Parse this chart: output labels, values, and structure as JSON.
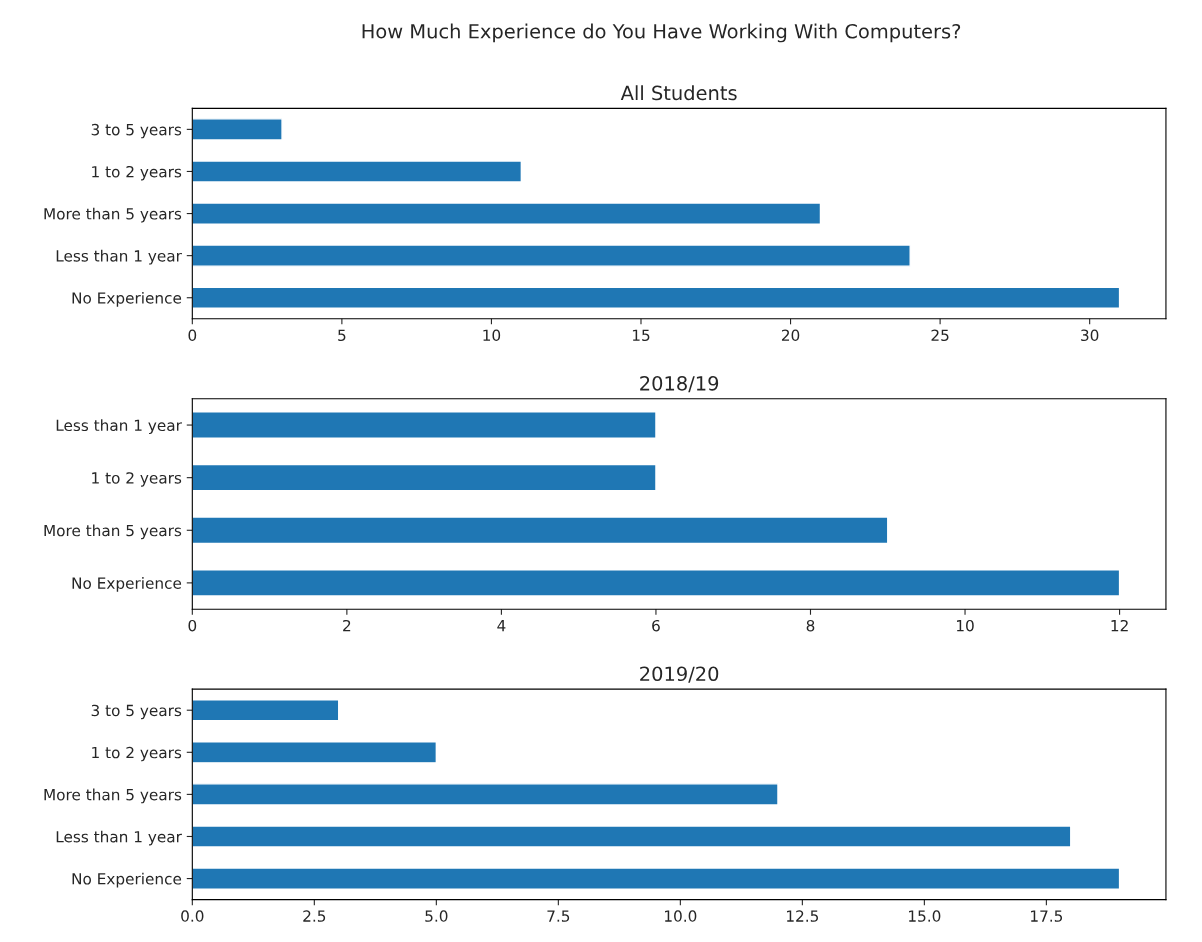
{
  "chart_data": [
    {
      "type": "bar",
      "orientation": "horizontal",
      "title": "All Students",
      "annotations": [
        "How Much Experience do You Have Working With Computers?"
      ],
      "categories": [
        "3 to 5 years",
        "1 to 2 years",
        "More than 5 years",
        "Less than 1 year",
        "No Experience"
      ],
      "values": [
        3,
        11,
        21,
        24,
        31
      ],
      "color": "#1f77b4",
      "xlim": [
        0,
        32.55
      ],
      "xticks": [
        0,
        5,
        10,
        15,
        20,
        25,
        30
      ],
      "grid": false,
      "legend": false
    },
    {
      "type": "bar",
      "orientation": "horizontal",
      "title": "2018/19",
      "categories": [
        "Less than 1 year",
        "1 to 2 years",
        "More than 5 years",
        "No Experience"
      ],
      "values": [
        6,
        6,
        9,
        12
      ],
      "color": "#1f77b4",
      "xlim": [
        0,
        12.6
      ],
      "xticks": [
        0,
        2,
        4,
        6,
        8,
        10,
        12
      ],
      "grid": false,
      "legend": false
    },
    {
      "type": "bar",
      "orientation": "horizontal",
      "title": "2019/20",
      "categories": [
        "3 to 5 years",
        "1 to 2 years",
        "More than 5 years",
        "Less than 1 year",
        "No Experience"
      ],
      "values": [
        3,
        5,
        12,
        18,
        19
      ],
      "color": "#1f77b4",
      "xlim": [
        0,
        19.95
      ],
      "xticks": [
        {
          "value": 0,
          "label": "0.0"
        },
        {
          "value": 2.5,
          "label": "2.5"
        },
        {
          "value": 5,
          "label": "5.0"
        },
        {
          "value": 7.5,
          "label": "7.5"
        },
        {
          "value": 10,
          "label": "10.0"
        },
        {
          "value": 12.5,
          "label": "12.5"
        },
        {
          "value": 15,
          "label": "15.0"
        },
        {
          "value": 17.5,
          "label": "17.5"
        }
      ],
      "grid": false,
      "legend": false
    }
  ]
}
